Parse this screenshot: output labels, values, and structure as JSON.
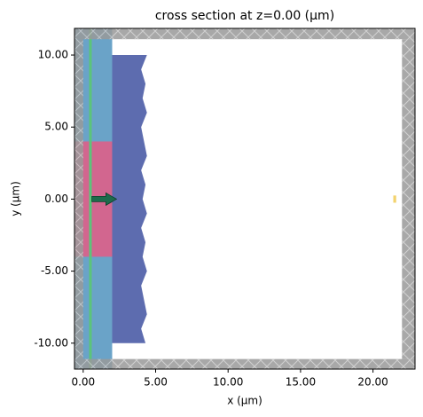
{
  "chart_data": {
    "type": "structure",
    "title": "cross section at z=0.00 (μm)",
    "x_label": "x (μm)",
    "y_label": "y (μm)",
    "xlim": [
      -0.6,
      22.9
    ],
    "ylim": [
      -11.8,
      11.85
    ],
    "xticks": [
      {
        "value": 0,
        "label": "0.00"
      },
      {
        "value": 5,
        "label": "5.00"
      },
      {
        "value": 10,
        "label": "10.00"
      },
      {
        "value": 15,
        "label": "15.00"
      },
      {
        "value": 20,
        "label": "20.00"
      }
    ],
    "yticks": [
      {
        "value": -10,
        "label": "-10.00"
      },
      {
        "value": -5,
        "label": "-5.00"
      },
      {
        "value": 0,
        "label": "0.00"
      },
      {
        "value": 5,
        "label": "5.00"
      },
      {
        "value": 10,
        "label": "10.00"
      }
    ],
    "shapes": [
      {
        "kind": "rect",
        "color": "#6aa3c8",
        "x": [
          -0.6,
          2
        ],
        "y": [
          -11.8,
          11.85
        ]
      },
      {
        "kind": "rect",
        "color": "#d2668f",
        "x": [
          -0.6,
          2
        ],
        "y": [
          -4,
          4
        ]
      },
      {
        "kind": "polygon",
        "color": "#5d6caf",
        "x": [
          2,
          4.4,
          4.0,
          4.3,
          4.1,
          4.4,
          4.0,
          4.2,
          4.4,
          4.0,
          4.3,
          4.1,
          4.4,
          4.0,
          4.3,
          4.1,
          4.4,
          4.0,
          4.2,
          4.4,
          4.0,
          4.3,
          2
        ],
        "y": [
          10,
          10,
          9,
          8,
          7,
          6,
          5,
          4,
          3,
          2,
          1,
          0,
          -1,
          -2,
          -3,
          -4,
          -5,
          -6,
          -7,
          -8,
          -9,
          -10,
          -10
        ]
      },
      {
        "kind": "line",
        "color": "#5cc47a",
        "x": [
          0.5,
          0.5
        ],
        "y": [
          -11.8,
          11.85
        ]
      },
      {
        "kind": "arrow",
        "color": "#1d6b4c",
        "x": [
          0.6,
          2.3
        ],
        "y": [
          0,
          0
        ]
      },
      {
        "kind": "rect",
        "color": "#f3d36e",
        "x": [
          21.4,
          21.6
        ],
        "y": [
          -0.25,
          0.25
        ]
      },
      {
        "kind": "pml",
        "color": "#9a9a9a",
        "x": [
          -0.6,
          22.9
        ],
        "y": [
          11.1,
          11.85
        ]
      },
      {
        "kind": "pml",
        "color": "#9a9a9a",
        "x": [
          -0.6,
          22.9
        ],
        "y": [
          -11.8,
          -11.1
        ]
      },
      {
        "kind": "pml",
        "color": "#9a9a9a",
        "x": [
          -0.6,
          0
        ],
        "y": [
          -11.1,
          11.1
        ]
      },
      {
        "kind": "pml",
        "color": "#9a9a9a",
        "x": [
          22,
          22.9
        ],
        "y": [
          -11.1,
          11.1
        ]
      }
    ]
  }
}
